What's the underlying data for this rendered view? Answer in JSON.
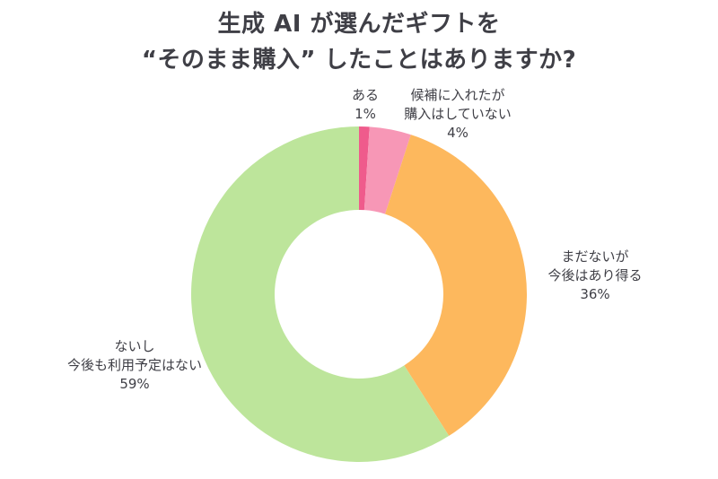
{
  "chart_data": {
    "type": "donut",
    "title_line1": "生成 AI が選んだギフトを",
    "title_line2": "“そのまま購入” したことはありますか?",
    "slices": [
      {
        "label_lines": [
          "ある"
        ],
        "value": 1,
        "value_label": "1%",
        "color": "#ef5b8c"
      },
      {
        "label_lines": [
          "候補に入れたが",
          "購入はしていない"
        ],
        "value": 4,
        "value_label": "4%",
        "color": "#f797b6"
      },
      {
        "label_lines": [
          "まだないが",
          "今後はあり得る"
        ],
        "value": 36,
        "value_label": "36%",
        "color": "#fdb85d"
      },
      {
        "label_lines": [
          "ないし",
          "今後も利用予定はない"
        ],
        "value": 59,
        "value_label": "59%",
        "color": "#bde59b"
      }
    ]
  }
}
